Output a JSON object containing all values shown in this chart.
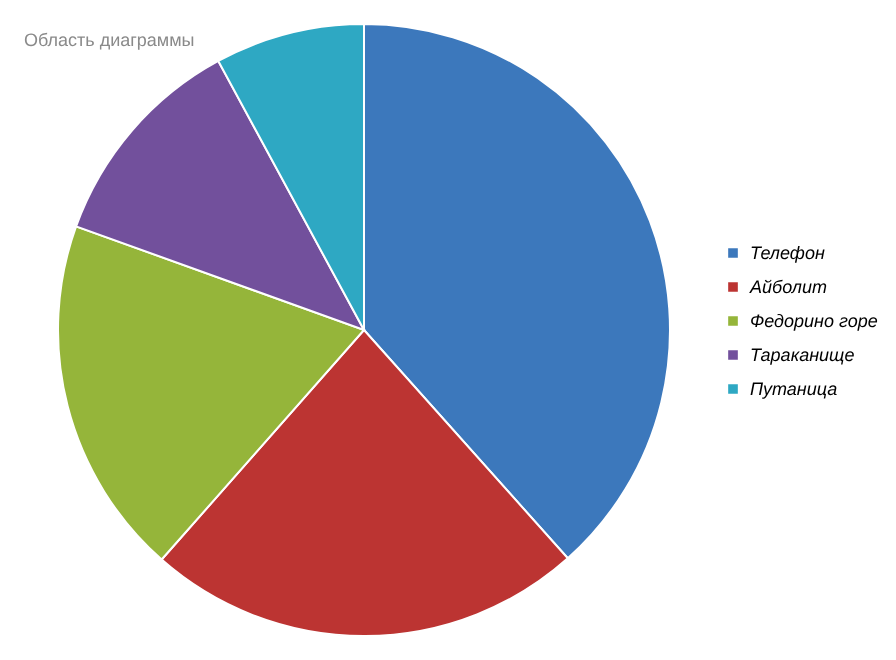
{
  "chart_data": {
    "type": "pie",
    "categories": [
      "Телефон",
      "Айболит",
      "Федорино горе",
      "Тараканище",
      "Путаница"
    ],
    "values": [
      38.4,
      23.1,
      19.0,
      11.6,
      7.9
    ],
    "colors": [
      "#3c78bc",
      "#bc3432",
      "#95b53a",
      "#72509c",
      "#2ea8c3"
    ],
    "legend": "right",
    "annotations": [
      "Область диаграммы"
    ]
  }
}
